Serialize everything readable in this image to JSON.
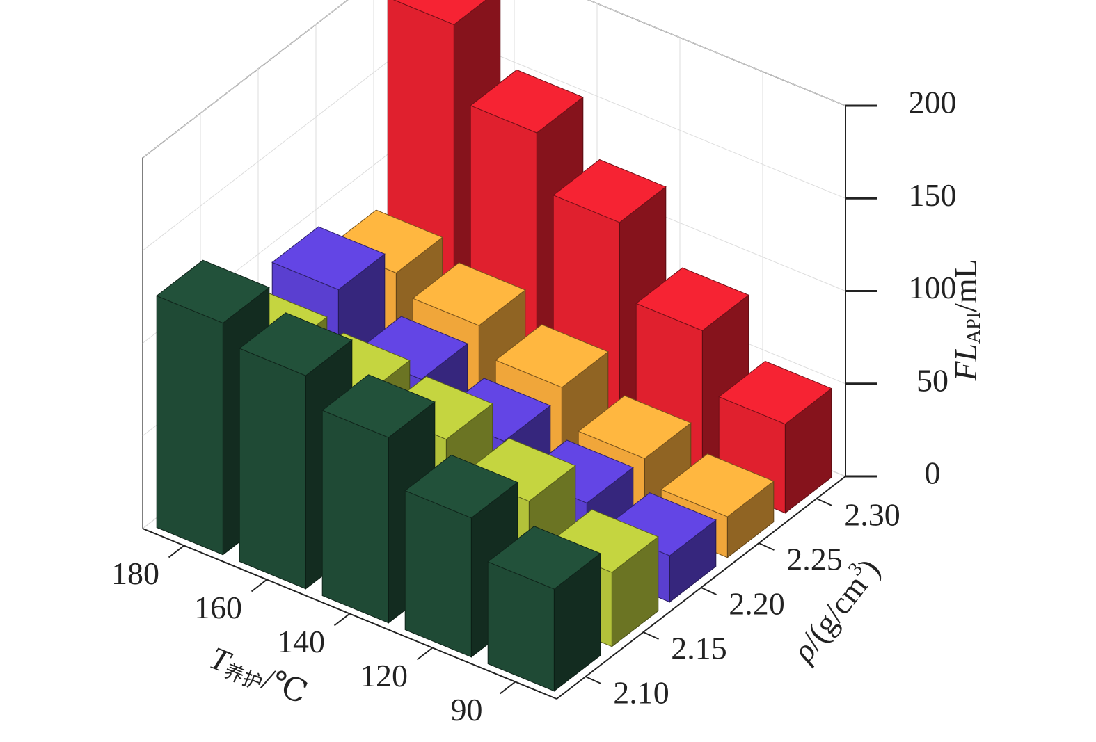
{
  "chart_data": {
    "type": "bar3d",
    "x_label": {
      "symbol": "T",
      "subscript": "养护",
      "unit": "/℃"
    },
    "y_label": {
      "symbol": "ρ",
      "unit": "/(g/cm",
      "power": "3",
      "close": ")"
    },
    "z_label": {
      "symbol": "FL",
      "subscript": "API",
      "unit": "/mL"
    },
    "categories": [
      "180",
      "160",
      "140",
      "120",
      "90"
    ],
    "series": [
      {
        "name": "2.10",
        "color": "#1f4a35",
        "values": [
          125,
          115,
          100,
          75,
          55
        ]
      },
      {
        "name": "2.15",
        "color": "#b3c23a",
        "values": [
          85,
          80,
          75,
          60,
          40
        ]
      },
      {
        "name": "2.20",
        "color": "#5a3fd0",
        "values": [
          95,
          65,
          50,
          35,
          25
        ]
      },
      {
        "name": "2.25",
        "color": "#f0a63a",
        "values": [
          80,
          70,
          55,
          35,
          22
        ]
      },
      {
        "name": "2.30",
        "color": "#e0202e",
        "values": [
          190,
          150,
          120,
          80,
          48
        ]
      }
    ],
    "zlim": [
      0,
      200
    ],
    "zticks": [
      0,
      50,
      100,
      150,
      200
    ],
    "grid": true
  }
}
